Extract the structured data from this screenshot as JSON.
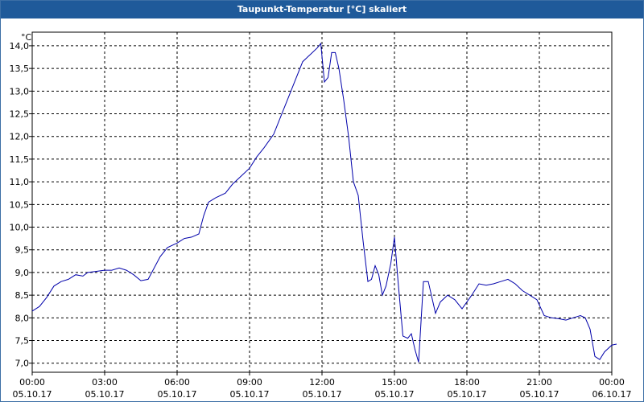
{
  "window": {
    "title": "Taupunkt-Temperatur [°C] skaliert"
  },
  "colors": {
    "titlebar": "#1f5a9a",
    "line": "#0000aa",
    "grid": "#000000"
  },
  "chart_data": {
    "type": "line",
    "title": "Taupunkt-Temperatur [°C] skaliert",
    "ylabel": "°C",
    "xlabel": "",
    "grid": true,
    "ylim": [
      6.8,
      14.3
    ],
    "xlim": [
      0,
      24
    ],
    "yticks": [
      7.0,
      7.5,
      8.0,
      8.5,
      9.0,
      9.5,
      10.0,
      10.5,
      11.0,
      11.5,
      12.0,
      12.5,
      13.0,
      13.5,
      14.0
    ],
    "ytick_labels": [
      "7,0",
      "7,5",
      "8,0",
      "8,5",
      "9,0",
      "9,5",
      "10,0",
      "10,5",
      "11,0",
      "11,5",
      "12,0",
      "12,5",
      "13,0",
      "13,5",
      "14,0"
    ],
    "xticks": [
      {
        "pos": 0,
        "time": "00:00",
        "date": "05.10.17"
      },
      {
        "pos": 3,
        "time": "03:00",
        "date": "05.10.17"
      },
      {
        "pos": 6,
        "time": "06:00",
        "date": "05.10.17"
      },
      {
        "pos": 9,
        "time": "09:00",
        "date": "05.10.17"
      },
      {
        "pos": 12,
        "time": "12:00",
        "date": "05.10.17"
      },
      {
        "pos": 15,
        "time": "15:00",
        "date": "05.10.17"
      },
      {
        "pos": 18,
        "time": "18:00",
        "date": "05.10.17"
      },
      {
        "pos": 21,
        "time": "21:00",
        "date": "05.10.17"
      },
      {
        "pos": 24,
        "time": "00:00",
        "date": "06.10.17"
      }
    ],
    "series": [
      {
        "points": [
          [
            0.0,
            8.15
          ],
          [
            0.3,
            8.25
          ],
          [
            0.6,
            8.45
          ],
          [
            0.9,
            8.7
          ],
          [
            1.2,
            8.8
          ],
          [
            1.5,
            8.85
          ],
          [
            1.8,
            8.95
          ],
          [
            2.1,
            8.92
          ],
          [
            2.3,
            9.0
          ],
          [
            2.6,
            9.02
          ],
          [
            3.0,
            9.05
          ],
          [
            3.3,
            9.05
          ],
          [
            3.6,
            9.1
          ],
          [
            3.9,
            9.05
          ],
          [
            4.2,
            8.95
          ],
          [
            4.5,
            8.82
          ],
          [
            4.8,
            8.85
          ],
          [
            5.0,
            9.05
          ],
          [
            5.3,
            9.35
          ],
          [
            5.6,
            9.55
          ],
          [
            6.0,
            9.65
          ],
          [
            6.3,
            9.75
          ],
          [
            6.6,
            9.78
          ],
          [
            6.9,
            9.85
          ],
          [
            7.1,
            10.25
          ],
          [
            7.3,
            10.55
          ],
          [
            7.6,
            10.65
          ],
          [
            8.0,
            10.75
          ],
          [
            8.3,
            10.95
          ],
          [
            8.6,
            11.1
          ],
          [
            9.0,
            11.3
          ],
          [
            9.3,
            11.55
          ],
          [
            9.6,
            11.75
          ],
          [
            10.0,
            12.05
          ],
          [
            10.3,
            12.45
          ],
          [
            10.6,
            12.85
          ],
          [
            10.9,
            13.25
          ],
          [
            11.2,
            13.65
          ],
          [
            11.5,
            13.8
          ],
          [
            11.8,
            13.95
          ],
          [
            11.95,
            14.05
          ],
          [
            12.1,
            13.2
          ],
          [
            12.25,
            13.3
          ],
          [
            12.4,
            13.85
          ],
          [
            12.55,
            13.85
          ],
          [
            12.7,
            13.5
          ],
          [
            12.9,
            12.8
          ],
          [
            13.1,
            12.0
          ],
          [
            13.3,
            11.0
          ],
          [
            13.5,
            10.7
          ],
          [
            13.7,
            9.7
          ],
          [
            13.9,
            8.8
          ],
          [
            14.05,
            8.85
          ],
          [
            14.2,
            9.15
          ],
          [
            14.35,
            8.95
          ],
          [
            14.5,
            8.5
          ],
          [
            14.65,
            8.7
          ],
          [
            14.85,
            9.2
          ],
          [
            15.0,
            9.78
          ],
          [
            15.15,
            8.8
          ],
          [
            15.35,
            7.6
          ],
          [
            15.55,
            7.55
          ],
          [
            15.7,
            7.65
          ],
          [
            15.85,
            7.3
          ],
          [
            16.0,
            7.02
          ],
          [
            16.2,
            8.8
          ],
          [
            16.4,
            8.8
          ],
          [
            16.7,
            8.1
          ],
          [
            16.9,
            8.35
          ],
          [
            17.2,
            8.5
          ],
          [
            17.5,
            8.4
          ],
          [
            17.8,
            8.2
          ],
          [
            18.2,
            8.5
          ],
          [
            18.5,
            8.75
          ],
          [
            18.8,
            8.72
          ],
          [
            19.1,
            8.75
          ],
          [
            19.4,
            8.8
          ],
          [
            19.7,
            8.85
          ],
          [
            20.0,
            8.75
          ],
          [
            20.3,
            8.6
          ],
          [
            20.6,
            8.5
          ],
          [
            20.9,
            8.4
          ],
          [
            21.2,
            8.05
          ],
          [
            21.5,
            8.0
          ],
          [
            21.8,
            7.98
          ],
          [
            22.1,
            7.95
          ],
          [
            22.4,
            8.0
          ],
          [
            22.7,
            8.05
          ],
          [
            22.9,
            8.0
          ],
          [
            23.1,
            7.75
          ],
          [
            23.3,
            7.15
          ],
          [
            23.5,
            7.08
          ],
          [
            23.7,
            7.25
          ],
          [
            24.0,
            7.4
          ],
          [
            24.2,
            7.42
          ]
        ]
      }
    ]
  }
}
